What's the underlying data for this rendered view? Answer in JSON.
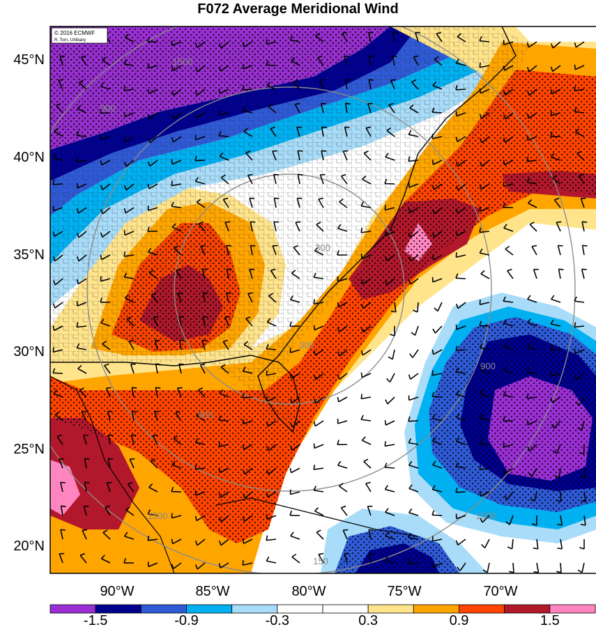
{
  "title": "F072 Average Meridional Wind",
  "credit": {
    "line1": "© 2016 ECMWF",
    "line2": "R. Torn, UAlbany"
  },
  "lat_labels": [
    "45°N",
    "40°N",
    "35°N",
    "30°N",
    "25°N",
    "20°N"
  ],
  "lon_labels": [
    "90°W",
    "85°W",
    "80°W",
    "75°W",
    "70°W"
  ],
  "colorbar": {
    "colors": [
      "#9a2fd4",
      "#00008f",
      "#2f5ad6",
      "#00b0f0",
      "#a8dcf8",
      "#ffffff",
      "#ffffff",
      "#ffe48c",
      "#ffa500",
      "#ff4400",
      "#b2182b",
      "#ff85c0"
    ],
    "labels": [
      "-1.5",
      "-0.9",
      "-0.3",
      "0.3",
      "0.9",
      "1.5"
    ]
  },
  "contour_labels": [
    "1500",
    "900",
    "300",
    "300",
    "900",
    "1500",
    "1500",
    "900",
    "150"
  ],
  "palette": {
    "frame": "#000000",
    "contour": "#8c8c8c",
    "stipple": "#000000"
  }
}
